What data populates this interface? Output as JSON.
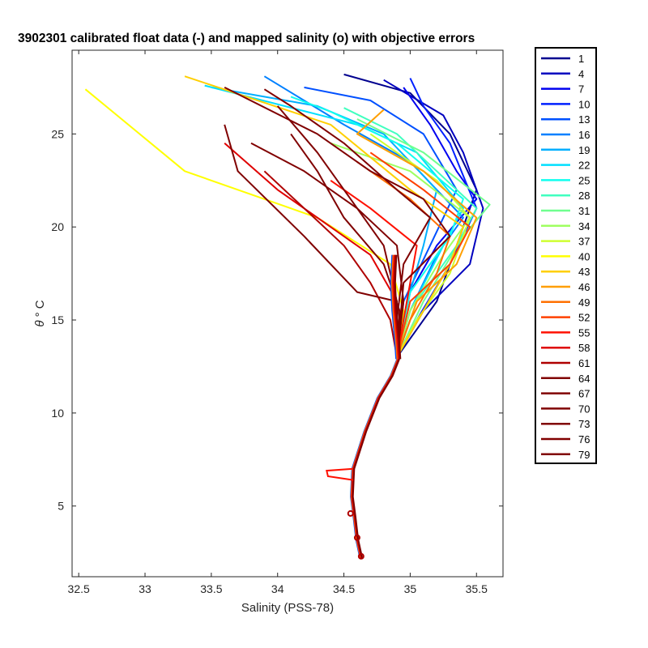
{
  "chart_data": {
    "type": "line",
    "title": "3902301 calibrated float data (-) and mapped salinity (o) with objective errors",
    "xlabel": "Salinity (PSS-78)",
    "ylabel_symbol": "θ",
    "ylabel_unit": "° C",
    "xlim": [
      32.45,
      35.7
    ],
    "ylim": [
      1.2,
      29.5
    ],
    "xticks": [
      "32.5",
      "33",
      "33.5",
      "34",
      "34.5",
      "35",
      "35.5"
    ],
    "yticks": [
      "5",
      "10",
      "15",
      "20",
      "25"
    ],
    "grid": false,
    "legend_position": "outside-right",
    "legend": [
      "1",
      "4",
      "7",
      "10",
      "13",
      "16",
      "19",
      "22",
      "25",
      "28",
      "31",
      "34",
      "37",
      "40",
      "43",
      "46",
      "49",
      "52",
      "55",
      "58",
      "61",
      "64",
      "67",
      "70",
      "73",
      "76",
      "79"
    ],
    "legend_colors": [
      "#00008f",
      "#0000bf",
      "#0000ef",
      "#0020ff",
      "#0050ff",
      "#0080ff",
      "#00afff",
      "#00dfff",
      "#10ffef",
      "#40ffbf",
      "#70ff8f",
      "#9fff60",
      "#cfff30",
      "#ffff00",
      "#ffcf00",
      "#ff9f00",
      "#ff7000",
      "#ff4000",
      "#ff1000",
      "#df0000",
      "#af0000",
      "#800000",
      "#800000",
      "#800000",
      "#800000",
      "#800000",
      "#800000"
    ],
    "deep_profile": [
      [
        34.63,
        2.2
      ],
      [
        34.6,
        3.2
      ],
      [
        34.58,
        4.4
      ],
      [
        34.56,
        5.5
      ],
      [
        34.57,
        7.0
      ],
      [
        34.66,
        9.0
      ],
      [
        34.76,
        10.8
      ],
      [
        34.86,
        12.0
      ],
      [
        34.91,
        12.9
      ]
    ],
    "mid_profile": [
      [
        34.91,
        12.9
      ],
      [
        34.9,
        14.0
      ],
      [
        34.88,
        15.5
      ],
      [
        34.87,
        17.0
      ],
      [
        34.88,
        18.5
      ]
    ],
    "series": [
      {
        "name": "1",
        "values": [
          [
            34.9,
            13
          ],
          [
            35.2,
            16
          ],
          [
            35.35,
            19
          ],
          [
            35.5,
            22
          ],
          [
            35.3,
            25
          ],
          [
            35.0,
            27.2
          ],
          [
            34.5,
            28.2
          ]
        ]
      },
      {
        "name": "4",
        "values": [
          [
            34.9,
            13
          ],
          [
            35.1,
            15.5
          ],
          [
            35.45,
            18
          ],
          [
            35.55,
            21
          ],
          [
            35.4,
            24
          ],
          [
            35.25,
            26
          ],
          [
            34.8,
            27.9
          ]
        ]
      },
      {
        "name": "7",
        "values": [
          [
            34.9,
            13
          ],
          [
            35.0,
            16.5
          ],
          [
            35.2,
            19
          ],
          [
            35.5,
            21.5
          ],
          [
            35.35,
            23
          ],
          [
            35.15,
            25.5
          ],
          [
            34.95,
            27.5
          ]
        ]
      },
      {
        "name": "10",
        "values": [
          [
            34.9,
            13
          ],
          [
            35.05,
            15
          ],
          [
            35.3,
            18
          ],
          [
            35.5,
            21
          ],
          [
            35.3,
            24.5
          ],
          [
            35.1,
            26.5
          ],
          [
            35.0,
            28.0
          ]
        ]
      },
      {
        "name": "13",
        "values": [
          [
            34.9,
            13
          ],
          [
            34.95,
            16
          ],
          [
            35.15,
            19
          ],
          [
            35.35,
            22
          ],
          [
            35.1,
            25
          ],
          [
            34.7,
            26.8
          ],
          [
            34.2,
            27.5
          ]
        ]
      },
      {
        "name": "16",
        "values": [
          [
            34.9,
            13
          ],
          [
            35.0,
            15.5
          ],
          [
            35.2,
            18.5
          ],
          [
            35.4,
            20.5
          ],
          [
            35.0,
            23.5
          ],
          [
            34.5,
            25.5
          ],
          [
            33.9,
            28.1
          ]
        ]
      },
      {
        "name": "19",
        "values": [
          [
            34.9,
            13
          ],
          [
            34.98,
            16
          ],
          [
            35.1,
            19
          ],
          [
            35.2,
            22
          ],
          [
            34.8,
            25
          ],
          [
            34.3,
            26.5
          ],
          [
            33.5,
            27.5
          ]
        ]
      },
      {
        "name": "22",
        "values": [
          [
            34.9,
            13
          ],
          [
            35.0,
            15.5
          ],
          [
            35.25,
            19
          ],
          [
            35.4,
            21
          ],
          [
            35.05,
            24
          ],
          [
            34.6,
            25.5
          ],
          [
            33.45,
            27.6
          ]
        ]
      },
      {
        "name": "25",
        "values": [
          [
            34.9,
            13
          ],
          [
            35.0,
            16.5
          ],
          [
            35.3,
            19.5
          ],
          [
            35.4,
            21.5
          ],
          [
            34.9,
            24.5
          ],
          [
            34.4,
            26.2
          ],
          [
            34.1,
            27.0
          ]
        ]
      },
      {
        "name": "28",
        "values": [
          [
            34.9,
            13
          ],
          [
            35.05,
            16
          ],
          [
            35.35,
            19
          ],
          [
            35.5,
            21
          ],
          [
            35.2,
            23
          ],
          [
            34.9,
            25
          ],
          [
            34.5,
            26.4
          ]
        ]
      },
      {
        "name": "31",
        "values": [
          [
            34.9,
            13
          ],
          [
            35.1,
            16
          ],
          [
            35.4,
            19.5
          ],
          [
            35.6,
            21.2
          ],
          [
            35.1,
            24
          ],
          [
            34.6,
            25.8
          ]
        ]
      },
      {
        "name": "34",
        "values": [
          [
            34.9,
            13
          ],
          [
            35.0,
            15.5
          ],
          [
            35.25,
            18.5
          ],
          [
            35.45,
            20.5
          ],
          [
            35.0,
            23
          ],
          [
            34.4,
            24.5
          ]
        ]
      },
      {
        "name": "37",
        "values": [
          [
            34.9,
            13
          ],
          [
            35.05,
            15
          ],
          [
            35.3,
            17.5
          ],
          [
            35.45,
            20.5
          ],
          [
            35.2,
            22.5
          ],
          [
            34.7,
            25
          ]
        ]
      },
      {
        "name": "40",
        "values": [
          [
            34.9,
            13
          ],
          [
            34.95,
            15.5
          ],
          [
            34.85,
            18
          ],
          [
            34.3,
            20.5
          ],
          [
            33.3,
            23
          ],
          [
            32.55,
            27.4
          ]
        ]
      },
      {
        "name": "43",
        "values": [
          [
            34.9,
            13
          ],
          [
            35.1,
            15.5
          ],
          [
            35.3,
            18
          ],
          [
            35.4,
            20
          ],
          [
            35.0,
            22
          ],
          [
            34.4,
            25.5
          ],
          [
            33.3,
            28.1
          ]
        ]
      },
      {
        "name": "46",
        "values": [
          [
            34.9,
            13
          ],
          [
            35.05,
            16
          ],
          [
            35.35,
            18
          ],
          [
            35.5,
            20.5
          ],
          [
            35.1,
            23
          ],
          [
            34.6,
            25
          ],
          [
            34.8,
            26.3
          ]
        ]
      },
      {
        "name": "49",
        "values": [
          [
            34.9,
            13
          ],
          [
            35.0,
            15
          ],
          [
            35.2,
            17.5
          ],
          [
            35.3,
            19.5
          ],
          [
            35.0,
            21.5
          ],
          [
            34.6,
            23.5
          ]
        ]
      },
      {
        "name": "52",
        "values": [
          [
            34.9,
            13
          ],
          [
            35.0,
            16
          ],
          [
            35.3,
            18
          ],
          [
            35.45,
            20
          ],
          [
            35.1,
            22
          ],
          [
            34.7,
            24
          ]
        ]
      },
      {
        "name": "55",
        "values": [
          [
            34.9,
            13
          ],
          [
            34.95,
            15
          ],
          [
            35.0,
            17
          ],
          [
            35.05,
            19
          ],
          [
            34.7,
            21
          ],
          [
            34.4,
            22.5
          ]
        ]
      },
      {
        "name": "58",
        "values": [
          [
            34.9,
            13
          ],
          [
            34.9,
            16
          ],
          [
            34.7,
            18.5
          ],
          [
            34.4,
            20
          ],
          [
            34.0,
            22
          ],
          [
            33.6,
            24.5
          ]
        ]
      },
      {
        "name": "61",
        "values": [
          [
            34.9,
            13
          ],
          [
            34.85,
            15
          ],
          [
            34.7,
            17
          ],
          [
            34.5,
            19
          ],
          [
            34.2,
            21
          ],
          [
            33.9,
            23
          ]
        ]
      },
      {
        "name": "64",
        "values": [
          [
            34.9,
            13
          ],
          [
            34.9,
            16
          ],
          [
            34.6,
            16.5
          ],
          [
            34.2,
            19.5
          ],
          [
            33.7,
            23
          ],
          [
            33.6,
            25.5
          ]
        ]
      },
      {
        "name": "67",
        "values": [
          [
            34.9,
            13
          ],
          [
            34.95,
            16
          ],
          [
            34.9,
            19
          ],
          [
            34.6,
            21
          ],
          [
            34.2,
            23
          ],
          [
            33.8,
            24.5
          ]
        ]
      },
      {
        "name": "70",
        "values": [
          [
            34.9,
            13
          ],
          [
            34.92,
            15.5
          ],
          [
            34.8,
            18
          ],
          [
            34.5,
            20.5
          ],
          [
            34.3,
            23
          ],
          [
            34.1,
            25
          ]
        ]
      },
      {
        "name": "73",
        "values": [
          [
            34.9,
            13
          ],
          [
            34.9,
            16
          ],
          [
            34.8,
            19
          ],
          [
            34.55,
            21.5
          ],
          [
            34.3,
            24
          ],
          [
            34.0,
            26.5
          ]
        ]
      },
      {
        "name": "76",
        "values": [
          [
            34.9,
            13
          ],
          [
            34.95,
            17
          ],
          [
            35.3,
            19.5
          ],
          [
            35.1,
            21.5
          ],
          [
            34.7,
            23
          ],
          [
            34.3,
            25
          ],
          [
            33.6,
            27.5
          ]
        ]
      },
      {
        "name": "79",
        "values": [
          [
            34.9,
            13
          ],
          [
            34.9,
            15
          ],
          [
            34.95,
            18
          ],
          [
            35.15,
            20.5
          ],
          [
            34.9,
            22
          ],
          [
            34.5,
            24.5
          ],
          [
            34.1,
            26.5
          ],
          [
            33.9,
            27.4
          ]
        ]
      }
    ]
  }
}
